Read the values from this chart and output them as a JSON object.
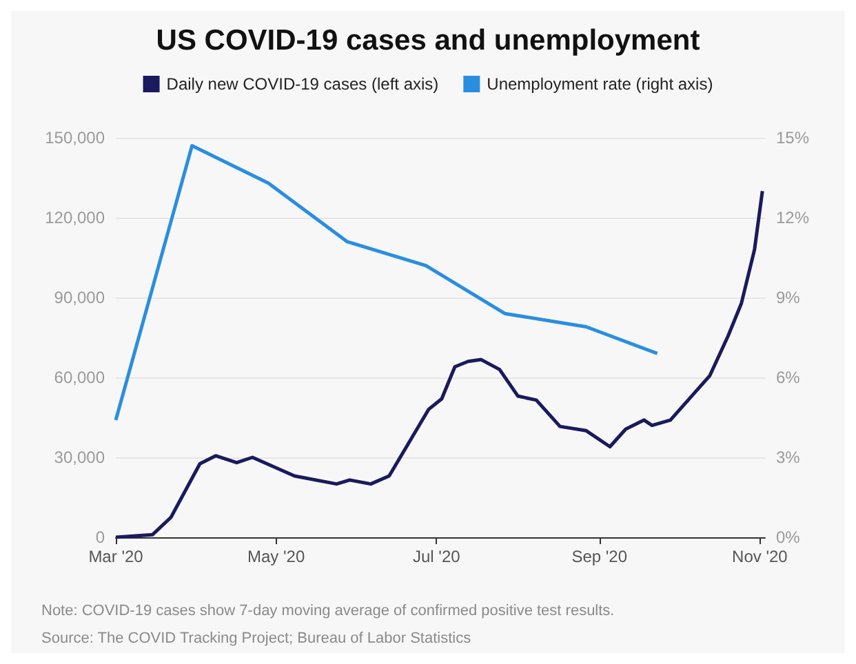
{
  "chart_data": {
    "type": "line",
    "title": "US COVID-19 cases and unemployment",
    "x": [
      "2020-03-01",
      "2020-03-15",
      "2020-03-22",
      "2020-04-02",
      "2020-04-08",
      "2020-04-16",
      "2020-04-22",
      "2020-05-08",
      "2020-05-24",
      "2020-05-29",
      "2020-06-06",
      "2020-06-13",
      "2020-06-28",
      "2020-07-03",
      "2020-07-08",
      "2020-07-13",
      "2020-07-18",
      "2020-07-25",
      "2020-08-01",
      "2020-08-08",
      "2020-08-17",
      "2020-08-27",
      "2020-09-05",
      "2020-09-11",
      "2020-09-18",
      "2020-09-21",
      "2020-09-28",
      "2020-10-07",
      "2020-10-13",
      "2020-10-20",
      "2020-10-25",
      "2020-10-30",
      "2020-11-02"
    ],
    "series": [
      {
        "name": "Daily new COVID-19 cases (left axis)",
        "color": "#1a1a5e",
        "values": [
          0,
          1000,
          7500,
          27600,
          30600,
          28000,
          30000,
          23000,
          20000,
          21500,
          20000,
          23000,
          48000,
          52000,
          64000,
          66000,
          66700,
          63000,
          53000,
          51500,
          41600,
          40000,
          34000,
          40600,
          44000,
          42000,
          44000,
          54000,
          60700,
          75700,
          87800,
          108000,
          130000
        ]
      },
      {
        "name": "Unemployment rate (right axis)",
        "color": "#2a8ee0",
        "axis": "y2",
        "x": [
          "2020-03-01",
          "2020-03-30",
          "2020-04-28",
          "2020-05-28",
          "2020-06-27",
          "2020-07-27",
          "2020-08-27",
          "2020-09-23"
        ],
        "values": [
          4.4,
          14.7,
          13.3,
          11.1,
          10.2,
          8.4,
          7.9,
          6.9
        ]
      }
    ],
    "xlim": [
      "2020-03-01",
      "2020-11-03"
    ],
    "xticks": [
      {
        "value": "2020-03-01",
        "label": "Mar '20"
      },
      {
        "value": "2020-05-01",
        "label": "May '20"
      },
      {
        "value": "2020-07-01",
        "label": "Jul '20"
      },
      {
        "value": "2020-09-01",
        "label": "Sep '20"
      },
      {
        "value": "2020-11-01",
        "label": "Nov '20"
      }
    ],
    "ylim": [
      0,
      150000
    ],
    "yticks": [
      0,
      {
        "value": 30000,
        "label": "30,000"
      },
      {
        "value": 60000,
        "label": "60,000"
      },
      {
        "value": 90000,
        "label": "90,000"
      },
      {
        "value": 120000,
        "label": "120,000"
      },
      {
        "value": 150000,
        "label": "150,000"
      }
    ],
    "y2lim": [
      0,
      15
    ],
    "y2ticks": [
      {
        "value": 0,
        "label": "0%"
      },
      {
        "value": 3,
        "label": "3%"
      },
      {
        "value": 6,
        "label": "6%"
      },
      {
        "value": 9,
        "label": "9%"
      },
      {
        "value": 12,
        "label": "12%"
      },
      {
        "value": 15,
        "label": "15%"
      }
    ],
    "grid": "y",
    "legend": "top",
    "marker": "none",
    "line_style": "solid",
    "annotations": [
      "Note: COVID-19 cases show 7-day moving average of confirmed positive test results.",
      "Source: The COVID Tracking Project; Bureau of Labor Statistics"
    ]
  }
}
